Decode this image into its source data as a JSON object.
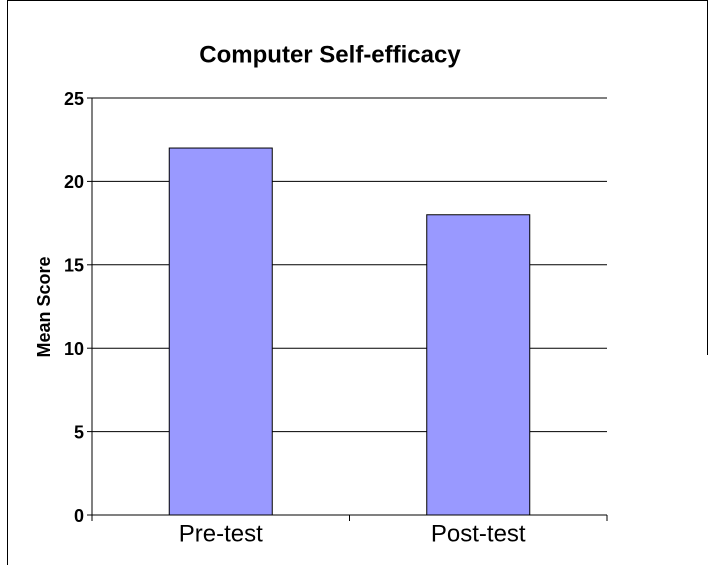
{
  "chart_data": {
    "type": "bar",
    "title": "Computer Self-efficacy",
    "y_label": "Mean Score",
    "categories": [
      "Pre-test",
      "Post-test"
    ],
    "values": [
      22,
      18
    ],
    "color": "#9999ff",
    "ylim": [
      0,
      25
    ],
    "yticks": [
      0,
      5,
      10,
      15,
      20,
      25
    ],
    "grid": true
  }
}
